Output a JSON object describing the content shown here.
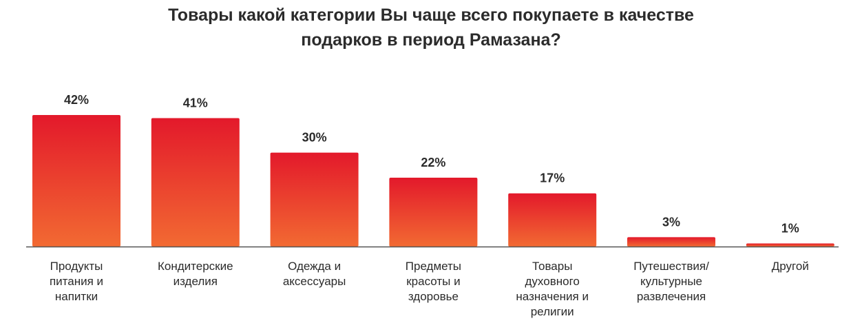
{
  "chart_data": {
    "type": "bar",
    "title_lines": [
      "Товары какой категории Вы чаще всего покупаете в качестве",
      "подарков в период Рамазана?"
    ],
    "categories": [
      [
        "Продукты",
        "питания и",
        "напитки"
      ],
      [
        "Кондитерские",
        "изделия"
      ],
      [
        "Одежда и",
        "аксессуары"
      ],
      [
        "Предметы",
        "красоты и",
        "здоровье"
      ],
      [
        "Товары",
        "духовного",
        "назначения и",
        "религии"
      ],
      [
        "Путешествия/",
        "культурные",
        "развлечения"
      ],
      [
        "Другой"
      ]
    ],
    "values": [
      42,
      41,
      30,
      22,
      17,
      3,
      1
    ],
    "data_labels": [
      "42%",
      "41%",
      "30%",
      "22%",
      "17%",
      "3%",
      "1%"
    ],
    "unit": "%",
    "ylim": [
      0,
      42
    ],
    "grid": false,
    "legend": "none",
    "colors": {
      "bar_top": "#e3192b",
      "bar_bottom": "#f26a32",
      "axis": "#555555",
      "label_text": "#2b2b2b"
    }
  }
}
